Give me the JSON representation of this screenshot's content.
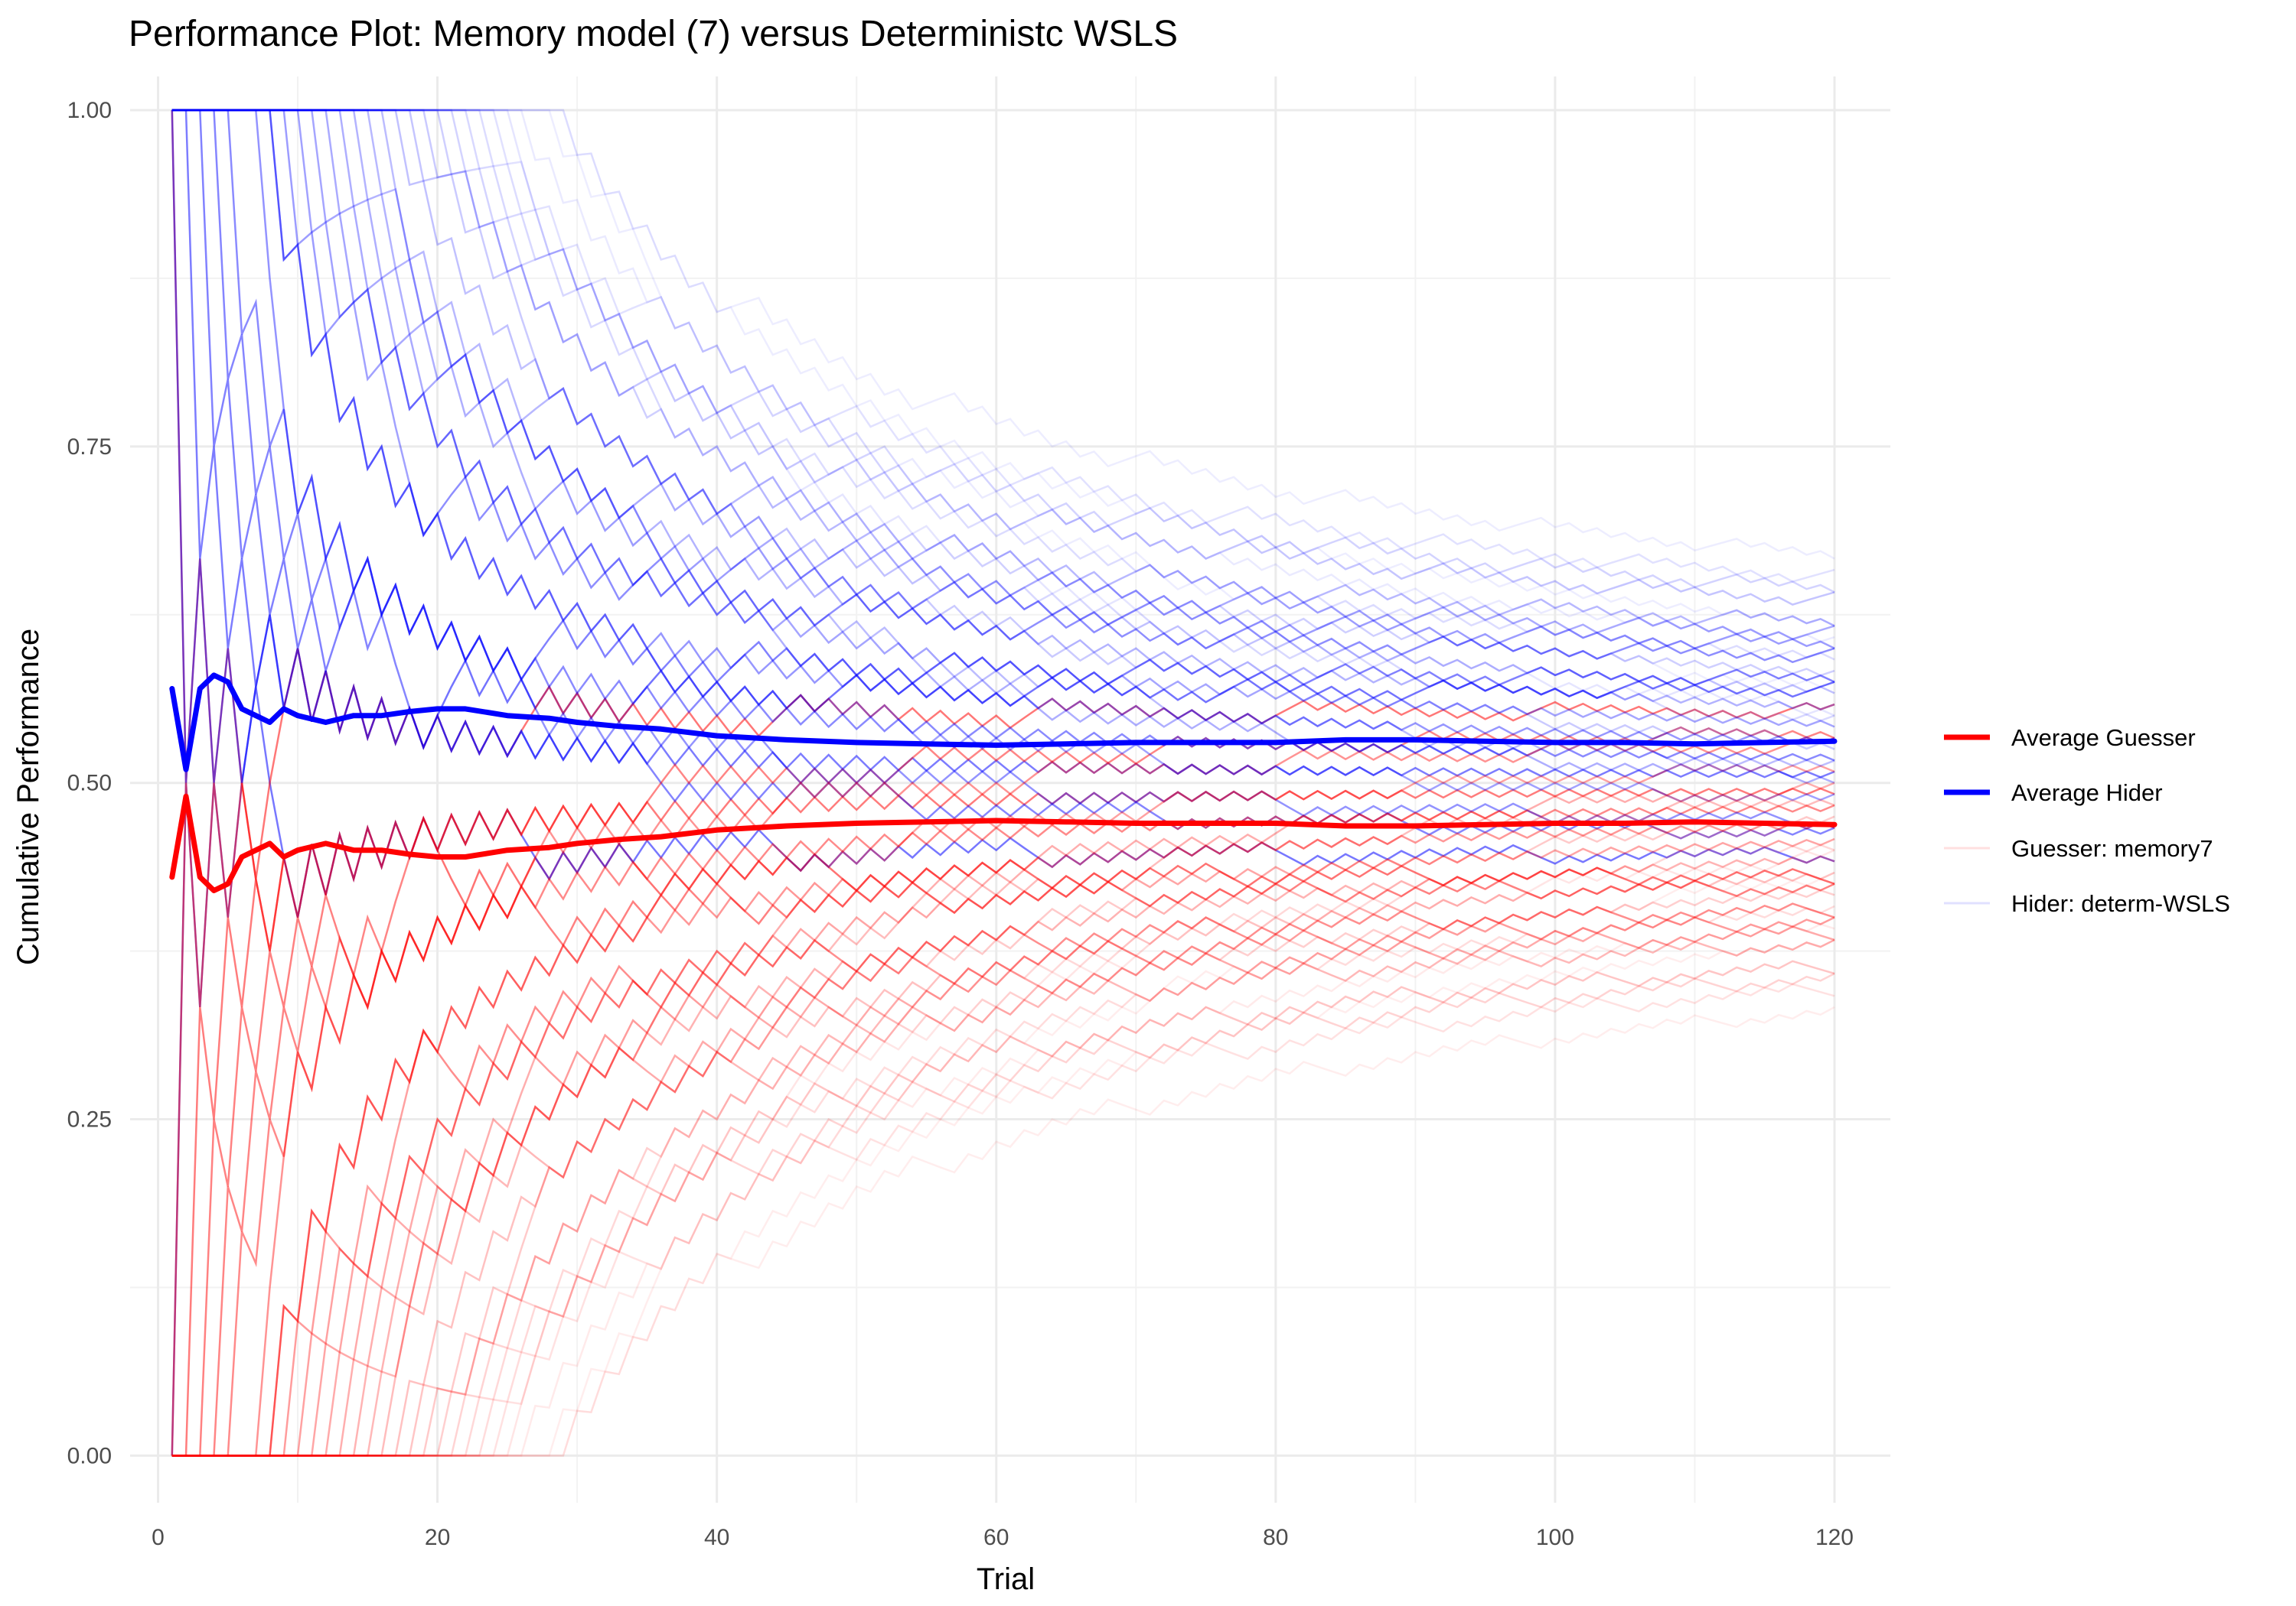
{
  "chart_data": {
    "type": "line",
    "title": "Performance Plot: Memory model (7) versus Deterministc WSLS",
    "xlabel": "Trial",
    "ylabel": "Cumulative Performance",
    "xlim": [
      -2,
      124
    ],
    "ylim": [
      -0.035,
      1.025
    ],
    "x_ticks": [
      0,
      20,
      40,
      60,
      80,
      100,
      120
    ],
    "y_ticks": [
      0.0,
      0.25,
      0.5,
      0.75,
      1.0
    ],
    "y_tick_labels": [
      "0.00",
      "0.25",
      "0.50",
      "0.75",
      "1.00"
    ],
    "grid": true,
    "legend_position": "right",
    "colors": {
      "guesser": "#ff0000",
      "hider": "#0000ff",
      "grid_major": "#ebebeb",
      "grid_minor": "#f2f2f2"
    },
    "legend": [
      {
        "label": "Average Guesser",
        "color": "#ff0000",
        "style": "thick"
      },
      {
        "label": "Average Hider",
        "color": "#0000ff",
        "style": "thick"
      },
      {
        "label": "Guesser: memory7",
        "color": "#ff0000",
        "style": "faint"
      },
      {
        "label": "Hider: determ-WSLS",
        "color": "#0000ff",
        "style": "faint"
      }
    ],
    "trials_per_run": 120,
    "run_start_offsets": [
      0,
      1,
      2,
      3,
      4,
      5,
      6,
      7,
      8,
      9,
      10,
      11,
      12,
      13,
      14,
      15,
      16,
      17,
      18,
      19,
      20,
      21,
      22,
      23,
      24,
      25,
      26,
      27,
      28,
      29
    ],
    "series": [
      {
        "name": "Average Guesser",
        "x": [
          1,
          2,
          3,
          4,
          5,
          6,
          7,
          8,
          9,
          10,
          12,
          14,
          16,
          18,
          20,
          22,
          25,
          28,
          30,
          33,
          36,
          40,
          45,
          50,
          55,
          60,
          65,
          70,
          75,
          80,
          85,
          90,
          95,
          100,
          105,
          110,
          115,
          120
        ],
        "values": [
          0.43,
          0.49,
          0.43,
          0.42,
          0.425,
          0.445,
          0.45,
          0.455,
          0.445,
          0.45,
          0.455,
          0.45,
          0.45,
          0.447,
          0.445,
          0.445,
          0.45,
          0.452,
          0.455,
          0.458,
          0.46,
          0.465,
          0.468,
          0.47,
          0.471,
          0.472,
          0.471,
          0.47,
          0.47,
          0.47,
          0.468,
          0.468,
          0.469,
          0.47,
          0.47,
          0.471,
          0.47,
          0.469
        ]
      },
      {
        "name": "Average Hider",
        "x": [
          1,
          2,
          3,
          4,
          5,
          6,
          7,
          8,
          9,
          10,
          12,
          14,
          16,
          18,
          20,
          22,
          25,
          28,
          30,
          33,
          36,
          40,
          45,
          50,
          55,
          60,
          65,
          70,
          75,
          80,
          85,
          90,
          95,
          100,
          105,
          110,
          115,
          120
        ],
        "values": [
          0.57,
          0.51,
          0.57,
          0.58,
          0.575,
          0.555,
          0.55,
          0.545,
          0.555,
          0.55,
          0.545,
          0.55,
          0.55,
          0.553,
          0.555,
          0.555,
          0.55,
          0.548,
          0.545,
          0.542,
          0.54,
          0.535,
          0.532,
          0.53,
          0.529,
          0.528,
          0.529,
          0.53,
          0.53,
          0.53,
          0.532,
          0.532,
          0.531,
          0.53,
          0.53,
          0.529,
          0.53,
          0.531
        ]
      }
    ]
  }
}
